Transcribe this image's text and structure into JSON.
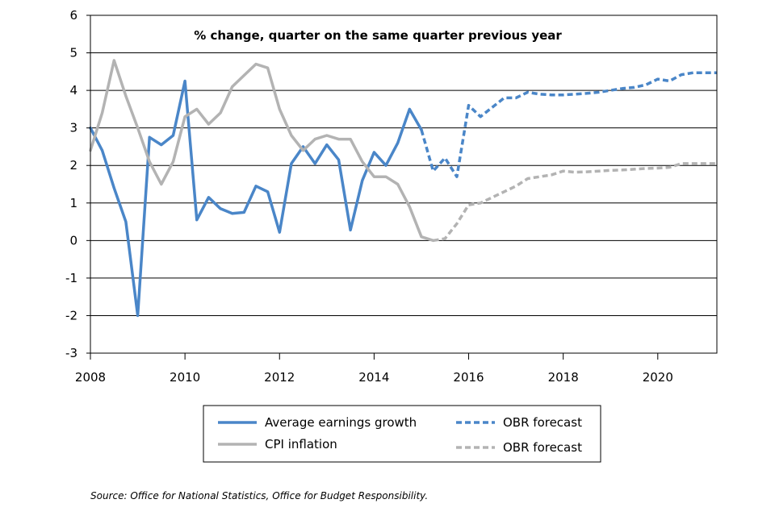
{
  "chart_data": {
    "type": "line",
    "title": "% change, quarter on the same quarter previous year",
    "xlabel": "",
    "ylabel": "",
    "xlim": [
      2008,
      2021.25
    ],
    "ylim": [
      -3,
      6
    ],
    "y_ticks": [
      -3,
      -2,
      -1,
      0,
      1,
      2,
      3,
      4,
      5,
      6
    ],
    "x_ticks": [
      2008,
      2010,
      2012,
      2014,
      2016,
      2018,
      2020
    ],
    "grid": "horizontal",
    "legend_position": "bottom",
    "series": [
      {
        "name": "Average earnings growth",
        "color": "#4a86c8",
        "style": "solid",
        "points": [
          [
            2008.0,
            3.0
          ],
          [
            2008.25,
            2.4
          ],
          [
            2008.5,
            1.4
          ],
          [
            2008.75,
            0.5
          ],
          [
            2009.0,
            -2.0
          ],
          [
            2009.25,
            2.75
          ],
          [
            2009.5,
            2.55
          ],
          [
            2009.75,
            2.8
          ],
          [
            2010.0,
            4.25
          ],
          [
            2010.25,
            0.55
          ],
          [
            2010.5,
            1.15
          ],
          [
            2010.75,
            0.85
          ],
          [
            2011.0,
            0.72
          ],
          [
            2011.25,
            0.75
          ],
          [
            2011.5,
            1.45
          ],
          [
            2011.75,
            1.3
          ],
          [
            2012.0,
            0.22
          ],
          [
            2012.25,
            2.05
          ],
          [
            2012.5,
            2.5
          ],
          [
            2012.75,
            2.05
          ],
          [
            2013.0,
            2.55
          ],
          [
            2013.25,
            2.15
          ],
          [
            2013.5,
            0.28
          ],
          [
            2013.75,
            1.6
          ],
          [
            2014.0,
            2.35
          ],
          [
            2014.25,
            2.0
          ],
          [
            2014.5,
            2.6
          ],
          [
            2014.75,
            3.5
          ],
          [
            2015.0,
            2.95
          ]
        ]
      },
      {
        "name": "OBR forecast",
        "color": "#4a86c8",
        "style": "dashed",
        "points": [
          [
            2015.0,
            2.95
          ],
          [
            2015.25,
            1.85
          ],
          [
            2015.5,
            2.2
          ],
          [
            2015.75,
            1.7
          ],
          [
            2016.0,
            3.6
          ],
          [
            2016.25,
            3.3
          ],
          [
            2016.5,
            3.55
          ],
          [
            2016.75,
            3.8
          ],
          [
            2017.0,
            3.8
          ],
          [
            2017.25,
            3.95
          ],
          [
            2017.5,
            3.9
          ],
          [
            2017.75,
            3.88
          ],
          [
            2018.0,
            3.88
          ],
          [
            2018.25,
            3.9
          ],
          [
            2018.5,
            3.92
          ],
          [
            2018.75,
            3.95
          ],
          [
            2019.0,
            4.0
          ],
          [
            2019.25,
            4.05
          ],
          [
            2019.5,
            4.08
          ],
          [
            2019.75,
            4.15
          ],
          [
            2020.0,
            4.3
          ],
          [
            2020.25,
            4.25
          ],
          [
            2020.5,
            4.42
          ],
          [
            2020.75,
            4.47
          ],
          [
            2021.0,
            4.47
          ],
          [
            2021.25,
            4.47
          ]
        ]
      },
      {
        "name": "CPI inflation",
        "color": "#b3b3b3",
        "style": "solid",
        "points": [
          [
            2008.0,
            2.4
          ],
          [
            2008.25,
            3.4
          ],
          [
            2008.5,
            4.8
          ],
          [
            2008.75,
            3.85
          ],
          [
            2009.0,
            3.0
          ],
          [
            2009.25,
            2.1
          ],
          [
            2009.5,
            1.5
          ],
          [
            2009.75,
            2.1
          ],
          [
            2010.0,
            3.3
          ],
          [
            2010.25,
            3.5
          ],
          [
            2010.5,
            3.1
          ],
          [
            2010.75,
            3.4
          ],
          [
            2011.0,
            4.1
          ],
          [
            2011.25,
            4.4
          ],
          [
            2011.5,
            4.7
          ],
          [
            2011.75,
            4.6
          ],
          [
            2012.0,
            3.5
          ],
          [
            2012.25,
            2.8
          ],
          [
            2012.5,
            2.4
          ],
          [
            2012.75,
            2.7
          ],
          [
            2013.0,
            2.8
          ],
          [
            2013.25,
            2.7
          ],
          [
            2013.5,
            2.7
          ],
          [
            2013.75,
            2.1
          ],
          [
            2014.0,
            1.7
          ],
          [
            2014.25,
            1.7
          ],
          [
            2014.5,
            1.5
          ],
          [
            2014.75,
            0.9
          ],
          [
            2015.0,
            0.1
          ],
          [
            2015.25,
            0.0
          ]
        ]
      },
      {
        "name": "OBR forecast",
        "color": "#b3b3b3",
        "style": "dashed",
        "points": [
          [
            2015.25,
            0.0
          ],
          [
            2015.5,
            0.05
          ],
          [
            2015.75,
            0.45
          ],
          [
            2016.0,
            0.95
          ],
          [
            2016.25,
            1.0
          ],
          [
            2016.5,
            1.15
          ],
          [
            2016.75,
            1.3
          ],
          [
            2017.0,
            1.45
          ],
          [
            2017.25,
            1.65
          ],
          [
            2017.5,
            1.7
          ],
          [
            2017.75,
            1.75
          ],
          [
            2018.0,
            1.85
          ],
          [
            2018.25,
            1.82
          ],
          [
            2018.5,
            1.83
          ],
          [
            2018.75,
            1.85
          ],
          [
            2019.0,
            1.87
          ],
          [
            2019.25,
            1.88
          ],
          [
            2019.5,
            1.9
          ],
          [
            2019.75,
            1.92
          ],
          [
            2020.0,
            1.93
          ],
          [
            2020.25,
            1.95
          ],
          [
            2020.5,
            2.05
          ],
          [
            2020.75,
            2.05
          ],
          [
            2021.0,
            2.05
          ],
          [
            2021.25,
            2.05
          ]
        ]
      }
    ],
    "legend": [
      {
        "label": "Average earnings growth",
        "color": "#4a86c8",
        "style": "solid"
      },
      {
        "label": "OBR forecast",
        "color": "#4a86c8",
        "style": "dashed"
      },
      {
        "label": "CPI inflation",
        "color": "#b3b3b3",
        "style": "solid"
      },
      {
        "label": "OBR forecast",
        "color": "#b3b3b3",
        "style": "dashed"
      }
    ]
  },
  "source_text": "Source: Office for National Statistics, Office for Budget Responsibility."
}
